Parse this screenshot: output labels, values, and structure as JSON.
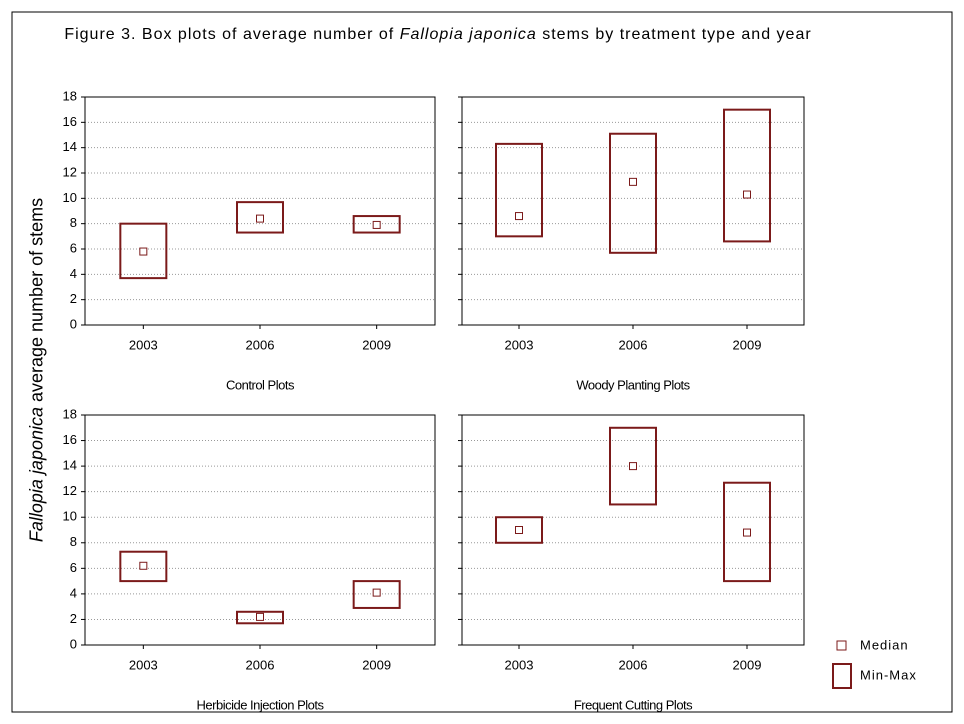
{
  "figure": {
    "title": [
      {
        "text": "Figure 3. Box plots of average number of ",
        "italic": false
      },
      {
        "text": "Fallopia japonica",
        "italic": true
      },
      {
        "text": " stems by treatment type and year",
        "italic": false
      }
    ],
    "ylabel": [
      {
        "text": "Fallopia japonica",
        "italic": true
      },
      {
        "text": " average number of stems",
        "italic": false
      }
    ],
    "legend": {
      "median": "Median",
      "range": "Min-Max"
    }
  },
  "chart_data": [
    {
      "type": "box",
      "xlabel": "Control Plots",
      "categories": [
        "2003",
        "2006",
        "2009"
      ],
      "median": [
        5.8,
        8.4,
        7.9
      ],
      "min": [
        3.7,
        7.3,
        7.3
      ],
      "max": [
        8.0,
        9.7,
        8.6
      ],
      "ylim": [
        0,
        18
      ],
      "yticks": [
        0,
        2,
        4,
        6,
        8,
        10,
        12,
        14,
        16,
        18
      ],
      "show_ytick_labels": true,
      "grid": true,
      "color": "#7b1a1a"
    },
    {
      "type": "box",
      "xlabel": "Woody Planting Plots",
      "categories": [
        "2003",
        "2006",
        "2009"
      ],
      "median": [
        8.6,
        11.3,
        10.3
      ],
      "min": [
        7.0,
        5.7,
        6.6
      ],
      "max": [
        14.3,
        15.1,
        17.0
      ],
      "ylim": [
        0,
        18
      ],
      "yticks": [
        0,
        2,
        4,
        6,
        8,
        10,
        12,
        14,
        16,
        18
      ],
      "show_ytick_labels": false,
      "grid": true,
      "color": "#7b1a1a"
    },
    {
      "type": "box",
      "xlabel": "Herbicide Injection Plots",
      "categories": [
        "2003",
        "2006",
        "2009"
      ],
      "median": [
        6.2,
        2.2,
        4.1
      ],
      "min": [
        5.0,
        1.7,
        2.9
      ],
      "max": [
        7.3,
        2.6,
        5.0
      ],
      "ylim": [
        0,
        18
      ],
      "yticks": [
        0,
        2,
        4,
        6,
        8,
        10,
        12,
        14,
        16,
        18
      ],
      "show_ytick_labels": true,
      "grid": true,
      "color": "#7b1a1a"
    },
    {
      "type": "box",
      "xlabel": "Frequent Cutting Plots",
      "categories": [
        "2003",
        "2006",
        "2009"
      ],
      "median": [
        9.0,
        14.0,
        8.8
      ],
      "min": [
        8.0,
        11.0,
        5.0
      ],
      "max": [
        10.0,
        17.0,
        12.7
      ],
      "ylim": [
        0,
        18
      ],
      "yticks": [
        0,
        2,
        4,
        6,
        8,
        10,
        12,
        14,
        16,
        18
      ],
      "show_ytick_labels": false,
      "grid": true,
      "color": "#7b1a1a"
    }
  ]
}
